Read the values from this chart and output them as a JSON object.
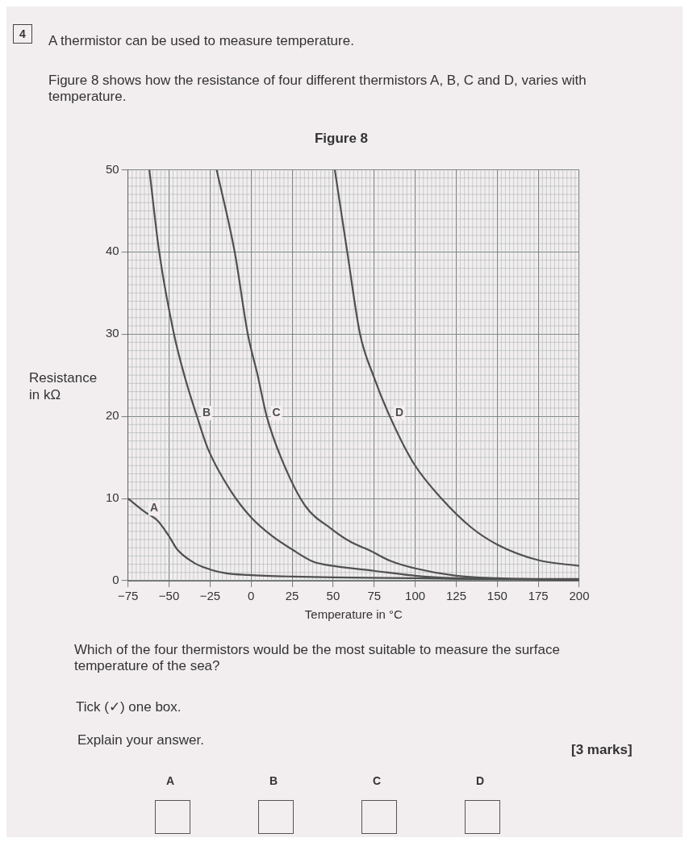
{
  "chart_data": {
    "type": "line",
    "title": "Figure 8",
    "xlabel": "Temperature in °C",
    "ylabel": "Resistance\nin kΩ",
    "annotations": [
      "4",
      "A thermistor can be used to measure temperature.",
      "Figure 8 shows how the resistance of four different thermistors A, B, C and D, varies with temperature.",
      "Which of the four thermistors would be the most suitable to measure the surface temperature of the sea?",
      "Tick (✓) one box.",
      "Explain your answer.",
      "[3 marks]",
      "A",
      "B",
      "C",
      "D"
    ],
    "xlim": [
      -75,
      200
    ],
    "xticks": [
      -75,
      -50,
      -25,
      0,
      25,
      50,
      75,
      100,
      125,
      150,
      175,
      200
    ],
    "ylim": [
      0,
      50
    ],
    "yticks": [
      0,
      10,
      20,
      30,
      40,
      50
    ],
    "grid": true,
    "legend": false,
    "marker": "none",
    "line_style": "solid",
    "series": [
      {
        "name": "A",
        "color": "#505050",
        "x": [
          -75,
          -65,
          -57,
          -50,
          -45,
          -35,
          -24,
          -15,
          -2,
          25,
          50,
          100,
          150,
          200
        ],
        "values": [
          10,
          8.4,
          7.3,
          5.4,
          3.8,
          2.2,
          1.3,
          0.9,
          0.7,
          0.5,
          0.4,
          0.3,
          0.2,
          0.2
        ]
      },
      {
        "name": "B",
        "color": "#505050",
        "x": [
          -62,
          -56,
          -47,
          -40,
          -33,
          -26,
          -12,
          0,
          13,
          25,
          38,
          50,
          75,
          100,
          125,
          150,
          200
        ],
        "values": [
          50,
          40,
          30,
          24.5,
          20,
          15.9,
          10.8,
          7.7,
          5.4,
          3.8,
          2.3,
          1.8,
          1.2,
          0.6,
          0.3,
          0.2,
          0.1
        ]
      },
      {
        "name": "C",
        "color": "#505050",
        "x": [
          -21,
          -10,
          -2,
          4,
          9.5,
          19,
          33,
          49,
          60,
          73,
          85,
          100,
          125,
          150,
          200
        ],
        "values": [
          50,
          40,
          30,
          25,
          20,
          14.6,
          9.1,
          6.3,
          4.8,
          3.6,
          2.4,
          1.5,
          0.6,
          0.3,
          0.1
        ]
      },
      {
        "name": "D",
        "color": "#505050",
        "x": [
          51,
          58.6,
          66.4,
          75,
          84.5,
          99,
          116,
          134,
          150,
          175,
          200
        ],
        "values": [
          50,
          40,
          30,
          24.7,
          20,
          14.3,
          10,
          6.5,
          4.4,
          2.5,
          1.8
        ]
      }
    ]
  }
}
